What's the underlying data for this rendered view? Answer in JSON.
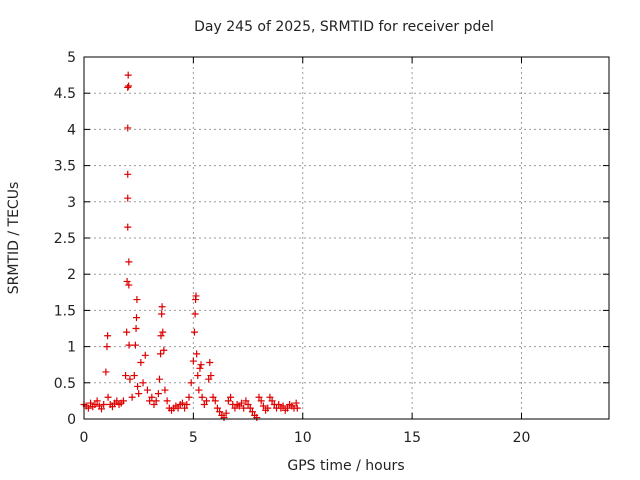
{
  "chart_data": {
    "type": "scatter",
    "title": "Day 245 of 2025, SRMTID for receiver pdel",
    "xlabel": "GPS time / hours",
    "ylabel": "SRMTID / TECUs",
    "xlim": [
      0,
      24
    ],
    "ylim": [
      0,
      5
    ],
    "x_ticks": [
      0,
      5,
      10,
      15,
      20
    ],
    "x_tick_labels": [
      "0",
      "5",
      "10",
      "15",
      "20"
    ],
    "y_ticks": [
      0,
      0.5,
      1,
      1.5,
      2,
      2.5,
      3,
      3.5,
      4,
      4.5,
      5
    ],
    "y_tick_labels": [
      "0",
      "0.5",
      "1",
      "1.5",
      "2",
      "2.5",
      "3",
      "3.5",
      "4",
      "4.5",
      "5"
    ],
    "grid": true,
    "series": [
      {
        "name": "SRMTID",
        "color": "#dd0000",
        "marker": "plus",
        "points": [
          [
            0.0,
            0.2
          ],
          [
            0.1,
            0.18
          ],
          [
            0.2,
            0.15
          ],
          [
            0.3,
            0.22
          ],
          [
            0.4,
            0.17
          ],
          [
            0.5,
            0.2
          ],
          [
            0.6,
            0.25
          ],
          [
            0.7,
            0.18
          ],
          [
            0.8,
            0.14
          ],
          [
            0.9,
            0.2
          ],
          [
            1.0,
            0.65
          ],
          [
            1.05,
            1.0
          ],
          [
            1.08,
            1.15
          ],
          [
            1.1,
            0.3
          ],
          [
            1.2,
            0.2
          ],
          [
            1.3,
            0.17
          ],
          [
            1.4,
            0.22
          ],
          [
            1.5,
            0.25
          ],
          [
            1.6,
            0.2
          ],
          [
            1.7,
            0.22
          ],
          [
            1.8,
            0.25
          ],
          [
            1.9,
            0.6
          ],
          [
            1.95,
            1.2
          ],
          [
            1.97,
            1.9
          ],
          [
            2.0,
            2.65
          ],
          [
            2.0,
            3.05
          ],
          [
            2.0,
            3.38
          ],
          [
            2.0,
            4.02
          ],
          [
            2.0,
            4.58
          ],
          [
            2.02,
            4.75
          ],
          [
            2.04,
            4.6
          ],
          [
            2.05,
            2.17
          ],
          [
            2.05,
            1.85
          ],
          [
            2.06,
            1.02
          ],
          [
            2.1,
            0.55
          ],
          [
            2.2,
            0.3
          ],
          [
            2.3,
            0.6
          ],
          [
            2.35,
            1.02
          ],
          [
            2.38,
            1.25
          ],
          [
            2.4,
            1.4
          ],
          [
            2.42,
            1.65
          ],
          [
            2.45,
            0.45
          ],
          [
            2.5,
            0.35
          ],
          [
            2.6,
            0.78
          ],
          [
            2.7,
            0.5
          ],
          [
            2.8,
            0.88
          ],
          [
            2.9,
            0.4
          ],
          [
            3.0,
            0.25
          ],
          [
            3.1,
            0.3
          ],
          [
            3.2,
            0.2
          ],
          [
            3.3,
            0.25
          ],
          [
            3.4,
            0.35
          ],
          [
            3.45,
            0.55
          ],
          [
            3.5,
            0.9
          ],
          [
            3.52,
            1.15
          ],
          [
            3.55,
            1.45
          ],
          [
            3.57,
            1.55
          ],
          [
            3.6,
            1.2
          ],
          [
            3.65,
            0.95
          ],
          [
            3.7,
            0.4
          ],
          [
            3.8,
            0.25
          ],
          [
            3.9,
            0.15
          ],
          [
            4.0,
            0.12
          ],
          [
            4.1,
            0.15
          ],
          [
            4.2,
            0.18
          ],
          [
            4.3,
            0.15
          ],
          [
            4.4,
            0.2
          ],
          [
            4.5,
            0.22
          ],
          [
            4.6,
            0.15
          ],
          [
            4.7,
            0.2
          ],
          [
            4.8,
            0.3
          ],
          [
            4.9,
            0.5
          ],
          [
            5.0,
            0.8
          ],
          [
            5.05,
            1.2
          ],
          [
            5.08,
            1.45
          ],
          [
            5.1,
            1.65
          ],
          [
            5.12,
            1.7
          ],
          [
            5.15,
            0.9
          ],
          [
            5.2,
            0.6
          ],
          [
            5.25,
            0.4
          ],
          [
            5.3,
            0.7
          ],
          [
            5.35,
            0.75
          ],
          [
            5.4,
            0.3
          ],
          [
            5.5,
            0.2
          ],
          [
            5.6,
            0.25
          ],
          [
            5.7,
            0.55
          ],
          [
            5.75,
            0.78
          ],
          [
            5.8,
            0.6
          ],
          [
            5.9,
            0.3
          ],
          [
            6.0,
            0.25
          ],
          [
            6.1,
            0.15
          ],
          [
            6.2,
            0.1
          ],
          [
            6.3,
            0.05
          ],
          [
            6.4,
            0.02
          ],
          [
            6.5,
            0.08
          ],
          [
            6.6,
            0.25
          ],
          [
            6.7,
            0.3
          ],
          [
            6.8,
            0.2
          ],
          [
            6.9,
            0.15
          ],
          [
            7.0,
            0.2
          ],
          [
            7.1,
            0.18
          ],
          [
            7.2,
            0.22
          ],
          [
            7.3,
            0.15
          ],
          [
            7.4,
            0.25
          ],
          [
            7.5,
            0.2
          ],
          [
            7.6,
            0.15
          ],
          [
            7.7,
            0.1
          ],
          [
            7.8,
            0.05
          ],
          [
            7.9,
            0.02
          ],
          [
            8.0,
            0.3
          ],
          [
            8.1,
            0.25
          ],
          [
            8.2,
            0.18
          ],
          [
            8.3,
            0.12
          ],
          [
            8.4,
            0.15
          ],
          [
            8.5,
            0.3
          ],
          [
            8.6,
            0.25
          ],
          [
            8.7,
            0.2
          ],
          [
            8.8,
            0.15
          ],
          [
            8.9,
            0.2
          ],
          [
            9.0,
            0.15
          ],
          [
            9.1,
            0.18
          ],
          [
            9.2,
            0.12
          ],
          [
            9.3,
            0.15
          ],
          [
            9.4,
            0.2
          ],
          [
            9.5,
            0.18
          ],
          [
            9.6,
            0.15
          ],
          [
            9.7,
            0.22
          ],
          [
            9.75,
            0.15
          ]
        ]
      }
    ]
  }
}
